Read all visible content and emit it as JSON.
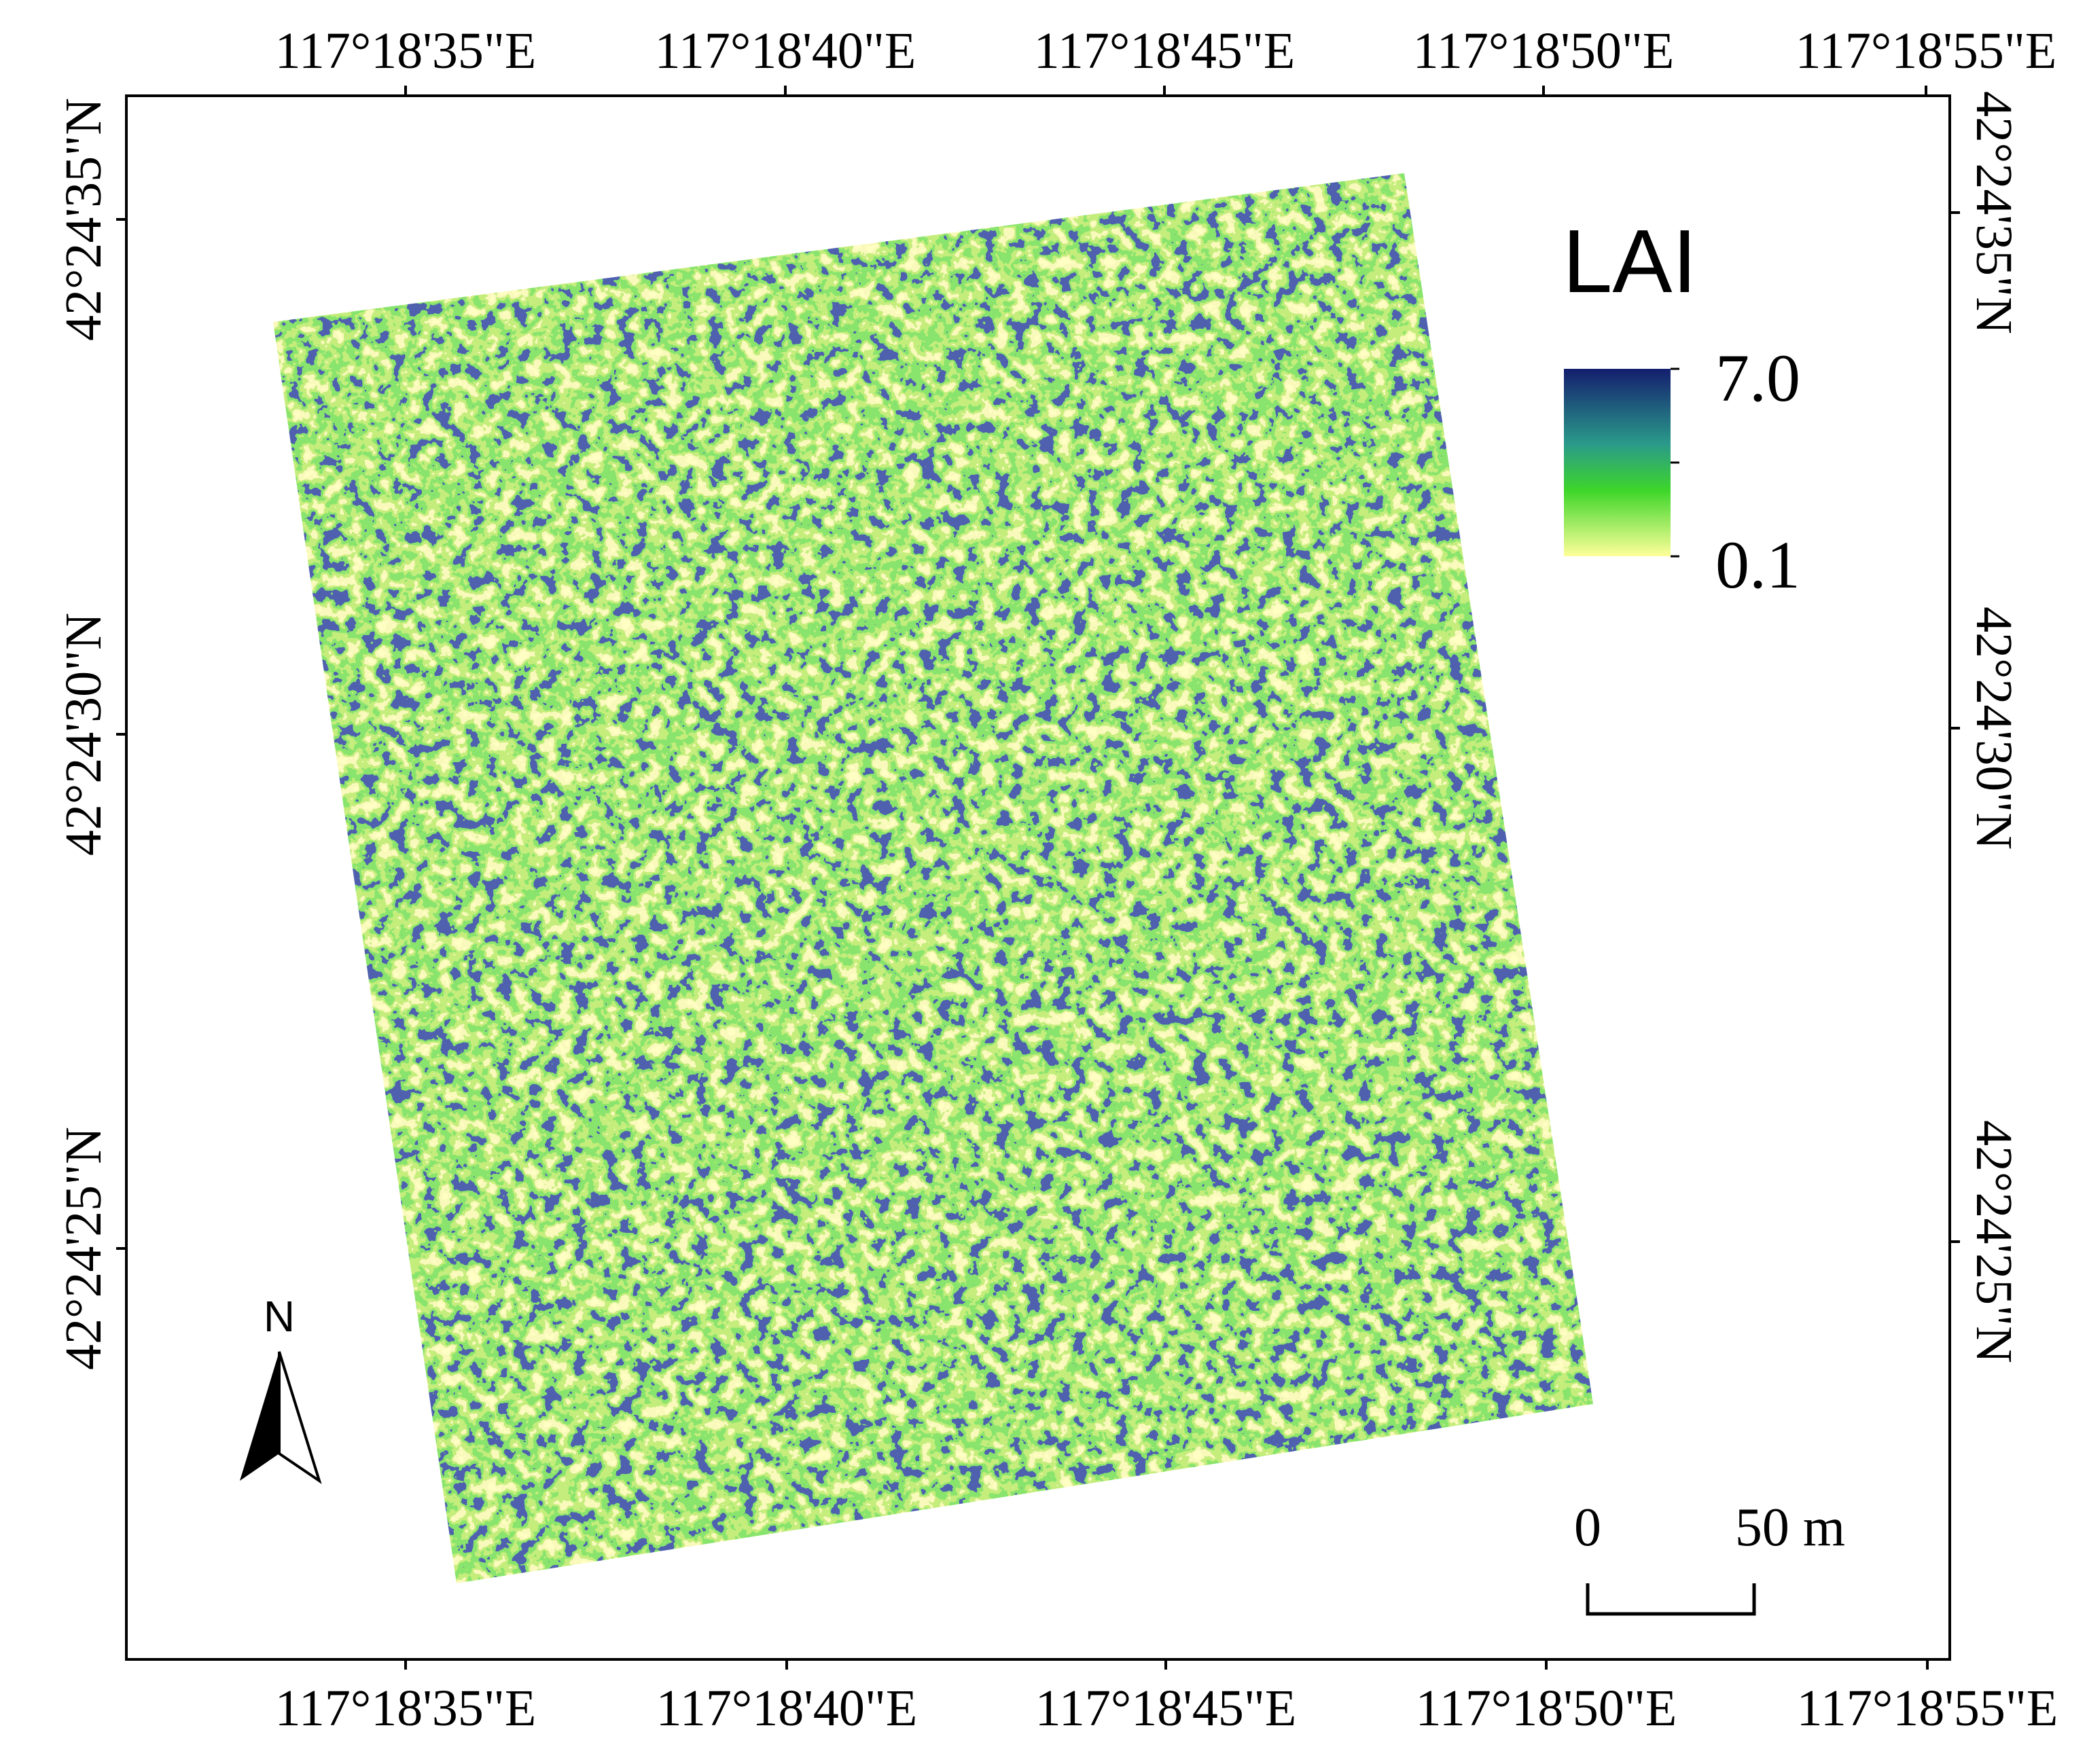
{
  "map": {
    "top_labels": [
      "117°18'35\"E",
      "117°18'40\"E",
      "117°18'45\"E",
      "117°18'50\"E",
      "117°18'55\"E"
    ],
    "bottom_labels": [
      "117°18'35\"E",
      "117°18'40\"E",
      "117°18'45\"E",
      "117°18'50\"E",
      "117°18'55\"E"
    ],
    "left_labels": [
      "42°24'35\"N",
      "42°24'30\"N",
      "42°24'25\"N"
    ],
    "right_labels": [
      "42°24'35\"N",
      "42°24'30\"N",
      "42°24'25\"N"
    ],
    "legend": {
      "title": "LAI",
      "max": "7.0",
      "min": "0.1"
    },
    "scale_bar": {
      "start": "0",
      "end": "50 m"
    },
    "north": "N"
  }
}
